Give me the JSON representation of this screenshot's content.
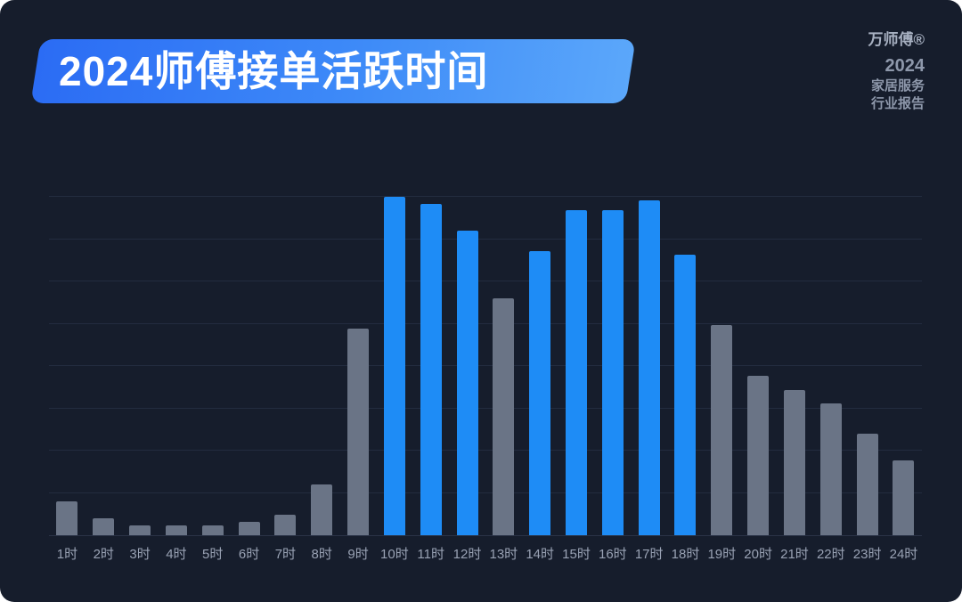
{
  "header": {
    "title": "2024师傅接单活跃时间"
  },
  "brand": {
    "logo": "万师傅®",
    "year": "2024",
    "line1": "家居服务",
    "line2": "行业报告"
  },
  "colors": {
    "background": "#161D2C",
    "banner_gradient_start": "#2B6CF4",
    "banner_gradient_end": "#5BA7FA",
    "bar_highlight": "#1E8CF6",
    "bar_base": "#6A7486",
    "axis_label": "#99A2B4",
    "gridline": "#232C3F"
  },
  "chart_data": {
    "type": "bar",
    "title": "2024师傅接单活跃时间",
    "categories": [
      "1时",
      "2时",
      "3时",
      "4时",
      "5时",
      "6时",
      "7时",
      "8时",
      "9时",
      "10时",
      "11时",
      "12时",
      "13时",
      "14时",
      "15时",
      "16时",
      "17时",
      "18时",
      "19时",
      "20时",
      "21时",
      "22时",
      "23时",
      "24时"
    ],
    "values": [
      10,
      5,
      3,
      3,
      3,
      4,
      6,
      15,
      61,
      100,
      98,
      90,
      70,
      84,
      96,
      96,
      99,
      83,
      62,
      47,
      43,
      39,
      30,
      22
    ],
    "highlight": [
      false,
      false,
      false,
      false,
      false,
      false,
      false,
      false,
      false,
      true,
      true,
      true,
      false,
      true,
      true,
      true,
      true,
      true,
      false,
      false,
      false,
      false,
      false,
      false
    ],
    "highlighted_categories": [
      "10时",
      "11时",
      "12时",
      "14时",
      "15时",
      "16时",
      "17时",
      "18时"
    ],
    "xlabel": "",
    "ylabel": "",
    "ylim": [
      0,
      100
    ],
    "grid": "horizontal",
    "legend": "none"
  }
}
